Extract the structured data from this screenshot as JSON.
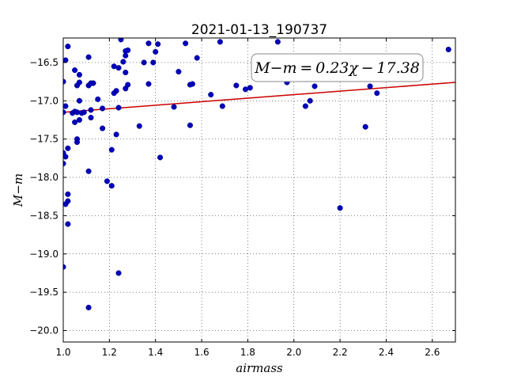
{
  "chart_data": {
    "type": "scatter",
    "title": "2021-01-13_190737",
    "xlabel": "airmass",
    "ylabel": "M−m",
    "xlim": [
      1.0,
      2.7
    ],
    "ylim": [
      -20.15,
      -16.18
    ],
    "xticks": [
      1.0,
      1.2,
      1.4,
      1.6,
      1.8,
      2.0,
      2.2,
      2.4,
      2.6
    ],
    "xtick_labels": [
      "1.0",
      "1.2",
      "1.4",
      "1.6",
      "1.8",
      "2.0",
      "2.2",
      "2.4",
      "2.6"
    ],
    "yticks": [
      -16.5,
      -17.0,
      -17.5,
      -18.0,
      -18.5,
      -19.0,
      -19.5,
      -20.0
    ],
    "ytick_labels": [
      "−16.5",
      "−17.0",
      "−17.5",
      "−18.0",
      "−18.5",
      "−19.0",
      "−19.5",
      "−20.0"
    ],
    "grid": true,
    "annotation": "M−m = 0.23χ − 17.38",
    "point_color": "#0000b8",
    "line_color": "#cc0000",
    "fit_line": {
      "slope": 0.23,
      "intercept": -17.38
    },
    "points": [
      {
        "x": 1.0,
        "y": -16.75
      },
      {
        "x": 1.01,
        "y": -16.47
      },
      {
        "x": 1.02,
        "y": -16.29
      },
      {
        "x": 1.01,
        "y": -17.07
      },
      {
        "x": 1.0,
        "y": -17.15
      },
      {
        "x": 1.0,
        "y": -17.68
      },
      {
        "x": 1.01,
        "y": -17.73
      },
      {
        "x": 1.02,
        "y": -17.62
      },
      {
        "x": 1.0,
        "y": -17.82
      },
      {
        "x": 1.02,
        "y": -18.22
      },
      {
        "x": 1.02,
        "y": -18.31
      },
      {
        "x": 1.01,
        "y": -18.35
      },
      {
        "x": 1.02,
        "y": -18.61
      },
      {
        "x": 1.0,
        "y": -19.17
      },
      {
        "x": 1.04,
        "y": -17.16
      },
      {
        "x": 1.05,
        "y": -17.14
      },
      {
        "x": 1.05,
        "y": -17.28
      },
      {
        "x": 1.06,
        "y": -17.5
      },
      {
        "x": 1.06,
        "y": -17.54
      },
      {
        "x": 1.07,
        "y": -17.25
      },
      {
        "x": 1.06,
        "y": -17.15
      },
      {
        "x": 1.08,
        "y": -17.16
      },
      {
        "x": 1.05,
        "y": -16.6
      },
      {
        "x": 1.06,
        "y": -16.8
      },
      {
        "x": 1.07,
        "y": -16.66
      },
      {
        "x": 1.07,
        "y": -16.76
      },
      {
        "x": 1.07,
        "y": -17.0
      },
      {
        "x": 1.09,
        "y": -17.15
      },
      {
        "x": 1.11,
        "y": -16.8
      },
      {
        "x": 1.12,
        "y": -16.77
      },
      {
        "x": 1.13,
        "y": -16.77
      },
      {
        "x": 1.11,
        "y": -16.43
      },
      {
        "x": 1.12,
        "y": -17.12
      },
      {
        "x": 1.12,
        "y": -17.22
      },
      {
        "x": 1.15,
        "y": -16.98
      },
      {
        "x": 1.17,
        "y": -17.1
      },
      {
        "x": 1.17,
        "y": -17.36
      },
      {
        "x": 1.11,
        "y": -17.92
      },
      {
        "x": 1.19,
        "y": -18.05
      },
      {
        "x": 1.21,
        "y": -18.11
      },
      {
        "x": 1.21,
        "y": -17.64
      },
      {
        "x": 1.11,
        "y": -19.7
      },
      {
        "x": 1.24,
        "y": -19.25
      },
      {
        "x": 1.23,
        "y": -17.44
      },
      {
        "x": 1.24,
        "y": -17.09
      },
      {
        "x": 1.22,
        "y": -16.55
      },
      {
        "x": 1.24,
        "y": -16.57
      },
      {
        "x": 1.23,
        "y": -16.87
      },
      {
        "x": 1.22,
        "y": -16.9
      },
      {
        "x": 1.25,
        "y": -16.2
      },
      {
        "x": 1.27,
        "y": -16.35
      },
      {
        "x": 1.28,
        "y": -16.34
      },
      {
        "x": 1.27,
        "y": -16.41
      },
      {
        "x": 1.26,
        "y": -16.49
      },
      {
        "x": 1.27,
        "y": -16.63
      },
      {
        "x": 1.28,
        "y": -16.79
      },
      {
        "x": 1.27,
        "y": -16.84
      },
      {
        "x": 1.33,
        "y": -17.33
      },
      {
        "x": 1.35,
        "y": -16.5
      },
      {
        "x": 1.37,
        "y": -16.25
      },
      {
        "x": 1.37,
        "y": -16.78
      },
      {
        "x": 1.39,
        "y": -16.5
      },
      {
        "x": 1.4,
        "y": -16.36
      },
      {
        "x": 1.41,
        "y": -16.26
      },
      {
        "x": 1.43,
        "y": -16.15
      },
      {
        "x": 1.42,
        "y": -17.74
      },
      {
        "x": 1.48,
        "y": -17.08
      },
      {
        "x": 1.5,
        "y": -16.62
      },
      {
        "x": 1.53,
        "y": -16.25
      },
      {
        "x": 1.55,
        "y": -16.79
      },
      {
        "x": 1.56,
        "y": -16.78
      },
      {
        "x": 1.55,
        "y": -17.32
      },
      {
        "x": 1.58,
        "y": -16.44
      },
      {
        "x": 1.64,
        "y": -16.92
      },
      {
        "x": 1.68,
        "y": -16.23
      },
      {
        "x": 1.69,
        "y": -17.07
      },
      {
        "x": 1.75,
        "y": -16.8
      },
      {
        "x": 1.79,
        "y": -16.85
      },
      {
        "x": 1.81,
        "y": -16.83
      },
      {
        "x": 1.93,
        "y": -16.23
      },
      {
        "x": 1.97,
        "y": -16.76
      },
      {
        "x": 2.05,
        "y": -17.07
      },
      {
        "x": 2.07,
        "y": -17.0
      },
      {
        "x": 2.09,
        "y": -16.81
      },
      {
        "x": 2.2,
        "y": -18.4
      },
      {
        "x": 2.31,
        "y": -17.34
      },
      {
        "x": 2.33,
        "y": -16.81
      },
      {
        "x": 2.36,
        "y": -16.9
      },
      {
        "x": 2.67,
        "y": -16.33
      }
    ]
  }
}
